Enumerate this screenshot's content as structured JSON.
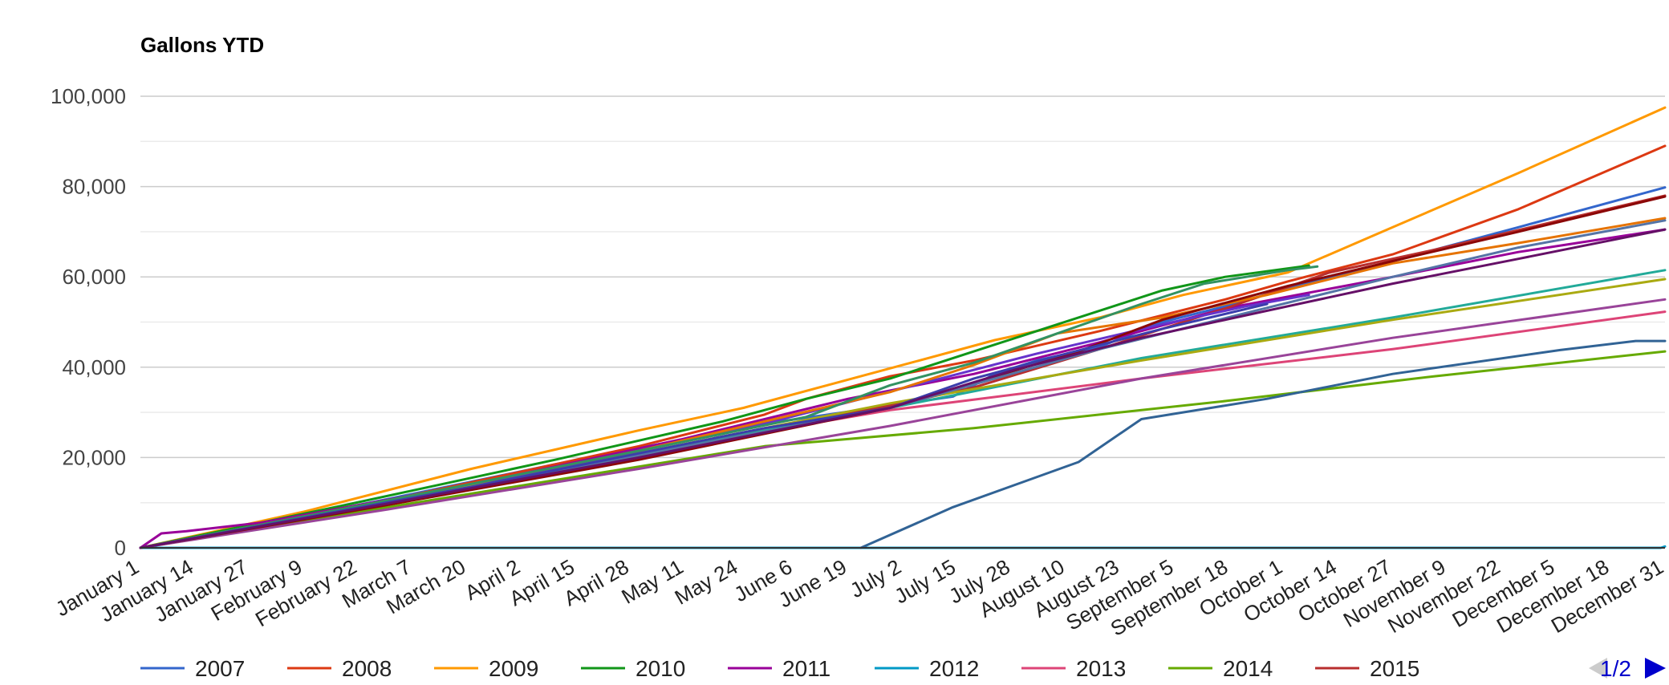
{
  "chart_data": {
    "type": "line",
    "title": "Gallons YTD",
    "xlabel": "",
    "ylabel": "",
    "ylim": [
      0,
      100000
    ],
    "yticks": [
      "0",
      "20,000",
      "40,000",
      "60,000",
      "80,000",
      "100,000"
    ],
    "ytick_values": [
      0,
      20000,
      40000,
      60000,
      80000,
      100000
    ],
    "grid": true,
    "legend_position": "bottom",
    "pager": "1/2",
    "x_tick_labels": [
      "January 1",
      "January 14",
      "January 27",
      "February 9",
      "February 22",
      "March 7",
      "March 20",
      "April 2",
      "April 15",
      "April 28",
      "May 11",
      "May 24",
      "June 6",
      "June 19",
      "July 2",
      "July 15",
      "July 28",
      "August 10",
      "August 23",
      "September 5",
      "September 18",
      "October 1",
      "October 14",
      "October 27",
      "November 9",
      "November 22",
      "December 5",
      "December 18",
      "December 31"
    ],
    "x_day_range": [
      1,
      365
    ],
    "series": [
      {
        "name": "2007",
        "color": "#3366cc",
        "points": [
          [
            1,
            0
          ],
          [
            30,
            5200
          ],
          [
            60,
            10800
          ],
          [
            100,
            18500
          ],
          [
            150,
            27500
          ],
          [
            195,
            33500
          ],
          [
            205,
            38500
          ],
          [
            215,
            41500
          ],
          [
            230,
            44500
          ],
          [
            245,
            50000
          ],
          [
            260,
            53500
          ],
          [
            275,
            57500
          ],
          [
            300,
            63500
          ],
          [
            330,
            71000
          ],
          [
            365,
            79800
          ]
        ]
      },
      {
        "name": "2008",
        "color": "#dc3912",
        "points": [
          [
            1,
            0
          ],
          [
            40,
            6500
          ],
          [
            80,
            14500
          ],
          [
            120,
            22500
          ],
          [
            150,
            29500
          ],
          [
            160,
            33000
          ],
          [
            180,
            38000
          ],
          [
            200,
            41500
          ],
          [
            230,
            48000
          ],
          [
            260,
            55000
          ],
          [
            275,
            59000
          ],
          [
            300,
            65000
          ],
          [
            330,
            75000
          ],
          [
            365,
            89000
          ]
        ]
      },
      {
        "name": "2009",
        "color": "#ff9900",
        "points": [
          [
            1,
            0
          ],
          [
            40,
            8000
          ],
          [
            80,
            17500
          ],
          [
            120,
            26000
          ],
          [
            145,
            31000
          ],
          [
            165,
            36000
          ],
          [
            185,
            41000
          ],
          [
            205,
            46000
          ],
          [
            230,
            51000
          ],
          [
            250,
            56000
          ],
          [
            275,
            61000
          ],
          [
            300,
            71000
          ],
          [
            330,
            83000
          ],
          [
            365,
            97500
          ]
        ]
      },
      {
        "name": "2010",
        "color": "#109618",
        "points": [
          [
            1,
            0
          ],
          [
            50,
            9500
          ],
          [
            100,
            19500
          ],
          [
            140,
            28000
          ],
          [
            160,
            33000
          ],
          [
            180,
            37500
          ],
          [
            200,
            43500
          ],
          [
            220,
            49500
          ],
          [
            245,
            57000
          ],
          [
            260,
            60000
          ],
          [
            280,
            62500
          ]
        ]
      },
      {
        "name": "2011",
        "color": "#990099",
        "points": [
          [
            1,
            0
          ],
          [
            6,
            3200
          ],
          [
            12,
            3700
          ],
          [
            30,
            5600
          ],
          [
            80,
            14000
          ],
          [
            130,
            24000
          ],
          [
            170,
            33000
          ],
          [
            200,
            38500
          ],
          [
            230,
            45500
          ],
          [
            260,
            53000
          ],
          [
            300,
            60000
          ],
          [
            330,
            65500
          ],
          [
            365,
            70500
          ]
        ]
      },
      {
        "name": "2012",
        "color": "#0099c6",
        "points": [
          [
            1,
            0
          ],
          [
            100,
            0
          ],
          [
            200,
            0
          ],
          [
            300,
            0
          ],
          [
            364,
            0
          ],
          [
            365,
            300
          ]
        ]
      },
      {
        "name": "2013",
        "color": "#dd4477",
        "points": [
          [
            1,
            0
          ],
          [
            60,
            10000
          ],
          [
            120,
            21000
          ],
          [
            180,
            30500
          ],
          [
            240,
            37500
          ],
          [
            300,
            44000
          ],
          [
            365,
            52300
          ]
        ]
      },
      {
        "name": "2014",
        "color": "#66aa00",
        "points": [
          [
            1,
            0
          ],
          [
            60,
            9000
          ],
          [
            120,
            18000
          ],
          [
            150,
            22500
          ],
          [
            200,
            26500
          ],
          [
            260,
            32500
          ],
          [
            310,
            38000
          ],
          [
            365,
            43500
          ]
        ]
      },
      {
        "name": "2015",
        "color": "#b82e2e",
        "points": [
          [
            1,
            0
          ],
          [
            30,
            5000
          ],
          [
            80,
            13500
          ],
          [
            130,
            22500
          ],
          [
            180,
            31500
          ],
          [
            200,
            35500
          ],
          [
            230,
            44000
          ],
          [
            260,
            53000
          ],
          [
            285,
            61000
          ],
          [
            310,
            66000
          ],
          [
            365,
            78000
          ]
        ]
      },
      {
        "name": "",
        "color": "#316395",
        "points": [
          [
            173,
            0
          ],
          [
            195,
            9000
          ],
          [
            225,
            19000
          ],
          [
            240,
            28500
          ],
          [
            270,
            33000
          ],
          [
            300,
            38500
          ],
          [
            340,
            43800
          ],
          [
            358,
            45800
          ],
          [
            365,
            45800
          ]
        ]
      },
      {
        "name": "",
        "color": "#994499",
        "points": [
          [
            1,
            0
          ],
          [
            60,
            8500
          ],
          [
            120,
            17500
          ],
          [
            180,
            27000
          ],
          [
            240,
            37500
          ],
          [
            300,
            46500
          ],
          [
            365,
            55000
          ]
        ]
      },
      {
        "name": "",
        "color": "#22aa99",
        "points": [
          [
            1,
            0
          ],
          [
            60,
            10500
          ],
          [
            120,
            21000
          ],
          [
            180,
            31000
          ],
          [
            240,
            42000
          ],
          [
            300,
            51000
          ],
          [
            365,
            61500
          ]
        ]
      },
      {
        "name": "",
        "color": "#aaaa11",
        "points": [
          [
            1,
            0
          ],
          [
            60,
            10000
          ],
          [
            120,
            21000
          ],
          [
            180,
            32000
          ],
          [
            240,
            41500
          ],
          [
            300,
            50500
          ],
          [
            365,
            59500
          ]
        ]
      },
      {
        "name": "",
        "color": "#6633cc",
        "points": [
          [
            1,
            0
          ],
          [
            80,
            13500
          ],
          [
            150,
            27500
          ],
          [
            190,
            37000
          ],
          [
            215,
            43000
          ],
          [
            245,
            49500
          ],
          [
            265,
            53500
          ],
          [
            280,
            56000
          ]
        ]
      },
      {
        "name": "",
        "color": "#e67300",
        "points": [
          [
            1,
            0
          ],
          [
            60,
            10500
          ],
          [
            120,
            21500
          ],
          [
            180,
            34500
          ],
          [
            200,
            40500
          ],
          [
            220,
            47500
          ],
          [
            245,
            51000
          ],
          [
            270,
            56000
          ],
          [
            300,
            63000
          ],
          [
            330,
            67500
          ],
          [
            365,
            73000
          ]
        ]
      },
      {
        "name": "",
        "color": "#8b0707",
        "points": [
          [
            1,
            0
          ],
          [
            60,
            9500
          ],
          [
            120,
            19500
          ],
          [
            180,
            31000
          ],
          [
            225,
            43500
          ],
          [
            245,
            50500
          ],
          [
            275,
            58000
          ],
          [
            300,
            63500
          ],
          [
            330,
            70000
          ],
          [
            365,
            77800
          ]
        ]
      },
      {
        "name": "",
        "color": "#329262",
        "points": [
          [
            1,
            0
          ],
          [
            60,
            10500
          ],
          [
            120,
            21500
          ],
          [
            160,
            29000
          ],
          [
            180,
            36000
          ],
          [
            200,
            41000
          ],
          [
            220,
            47500
          ],
          [
            240,
            54000
          ],
          [
            255,
            58500
          ],
          [
            275,
            61500
          ],
          [
            282,
            62300
          ]
        ]
      },
      {
        "name": "",
        "color": "#5574a6",
        "points": [
          [
            1,
            0
          ],
          [
            60,
            10000
          ],
          [
            120,
            20500
          ],
          [
            180,
            31000
          ],
          [
            230,
            44000
          ],
          [
            265,
            52000
          ],
          [
            300,
            60000
          ],
          [
            330,
            66500
          ],
          [
            365,
            72500
          ]
        ]
      },
      {
        "name": "",
        "color": "#3b3eac",
        "points": [
          [
            1,
            0
          ],
          [
            80,
            13500
          ],
          [
            150,
            26500
          ],
          [
            180,
            31000
          ],
          [
            200,
            37500
          ],
          [
            220,
            42500
          ],
          [
            245,
            48500
          ],
          [
            270,
            54000
          ]
        ]
      },
      {
        "name": "",
        "color": "#651067",
        "points": [
          [
            1,
            0
          ],
          [
            60,
            9800
          ],
          [
            120,
            20000
          ],
          [
            180,
            31000
          ],
          [
            210,
            39500
          ],
          [
            240,
            46500
          ],
          [
            270,
            52500
          ],
          [
            300,
            58500
          ],
          [
            330,
            64000
          ],
          [
            365,
            70500
          ]
        ]
      }
    ]
  }
}
